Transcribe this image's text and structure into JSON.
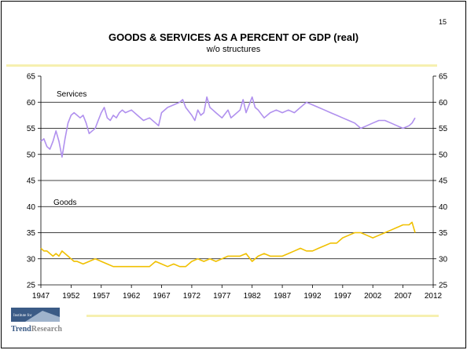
{
  "slide": {
    "page_number": "15",
    "title": "GOODS & SERVICES AS A PERCENT OF GDP (real)",
    "subtitle": "w/o structures",
    "logo": {
      "top_text": "Institute for",
      "brand": "TrendResearch",
      "brand_part1": "Trend",
      "brand_part2": "Research"
    }
  },
  "colors": {
    "services": "#b090ee",
    "goods": "#f0c000",
    "rule": "#f6f0b0",
    "logo_blue": "#3b5b86"
  },
  "chart_data": {
    "type": "line",
    "title": "GOODS & SERVICES AS A PERCENT OF GDP (real)",
    "subtitle": "w/o structures",
    "xlim": [
      1947,
      2012
    ],
    "ylim": [
      25,
      65
    ],
    "xticks": [
      1947,
      1952,
      1957,
      1962,
      1967,
      1972,
      1977,
      1982,
      1987,
      1992,
      1997,
      2002,
      2007,
      2012
    ],
    "yticks": [
      25,
      30,
      35,
      40,
      45,
      50,
      55,
      60,
      65
    ],
    "grid": "horizontal",
    "series": [
      {
        "name": "Services",
        "color": "#b090ee",
        "x": [
          1947,
          1947.5,
          1948,
          1948.5,
          1949,
          1949.5,
          1950,
          1950.5,
          1951,
          1951.5,
          1952,
          1952.5,
          1953,
          1953.5,
          1954,
          1954.5,
          1955,
          1955.5,
          1956,
          1956.5,
          1957,
          1957.5,
          1958,
          1958.5,
          1959,
          1959.5,
          1960,
          1960.5,
          1961,
          1962,
          1963,
          1964,
          1965,
          1966,
          1966.5,
          1967,
          1968,
          1969,
          1970,
          1970.5,
          1971,
          1972,
          1972.5,
          1973,
          1973.5,
          1974,
          1974.5,
          1975,
          1975.5,
          1976,
          1977,
          1978,
          1978.5,
          1979,
          1980,
          1980.5,
          1981,
          1982,
          1982.5,
          1983,
          1984,
          1985,
          1986,
          1987,
          1988,
          1989,
          1990,
          1991,
          1992,
          1993,
          1994,
          1995,
          1996,
          1997,
          1998,
          1999,
          2000,
          2001,
          2002,
          2003,
          2004,
          2005,
          2006,
          2007,
          2008,
          2008.5,
          2009
        ],
        "values": [
          52.5,
          53.0,
          51.5,
          51.0,
          52.5,
          54.5,
          52.5,
          49.5,
          53.0,
          56.0,
          57.5,
          58.0,
          57.5,
          57.0,
          57.5,
          56.0,
          54.0,
          54.5,
          55.0,
          56.5,
          58.0,
          59.0,
          57.0,
          56.5,
          57.5,
          57.0,
          58.0,
          58.5,
          58.0,
          58.5,
          57.5,
          56.5,
          57.0,
          56.0,
          55.5,
          58.0,
          59.0,
          59.5,
          60.0,
          60.5,
          59.0,
          57.5,
          56.5,
          58.5,
          57.5,
          58.0,
          61.0,
          59.0,
          58.5,
          58.0,
          57.0,
          58.5,
          57.0,
          57.5,
          58.5,
          60.5,
          58.0,
          61.0,
          59.0,
          58.5,
          57.0,
          58.0,
          58.5,
          58.0,
          58.5,
          58.0,
          59.0,
          60.0,
          59.5,
          59.0,
          58.5,
          58.0,
          57.5,
          57.0,
          56.5,
          56.0,
          55.0,
          55.5,
          56.0,
          56.5,
          56.5,
          56.0,
          55.5,
          55.0,
          55.5,
          56.0,
          57.0
        ]
      },
      {
        "name": "Goods",
        "color": "#f0c000",
        "x": [
          1947,
          1947.5,
          1948,
          1948.5,
          1949,
          1949.5,
          1950,
          1950.5,
          1951,
          1951.5,
          1952,
          1952.5,
          1953,
          1954,
          1955,
          1956,
          1957,
          1958,
          1959,
          1960,
          1961,
          1962,
          1963,
          1964,
          1965,
          1966,
          1967,
          1968,
          1969,
          1970,
          1971,
          1972,
          1973,
          1974,
          1975,
          1976,
          1977,
          1978,
          1979,
          1980,
          1981,
          1982,
          1983,
          1984,
          1985,
          1986,
          1987,
          1988,
          1989,
          1990,
          1991,
          1992,
          1993,
          1994,
          1995,
          1996,
          1997,
          1998,
          1999,
          2000,
          2001,
          2002,
          2003,
          2004,
          2005,
          2006,
          2007,
          2007.5,
          2008,
          2008.5,
          2009
        ],
        "values": [
          32.0,
          31.5,
          31.5,
          31.0,
          30.5,
          31.0,
          30.5,
          31.5,
          31.0,
          30.5,
          30.0,
          29.5,
          29.5,
          29.0,
          29.5,
          30.0,
          29.5,
          29.0,
          28.5,
          28.5,
          28.5,
          28.5,
          28.5,
          28.5,
          28.5,
          29.5,
          29.0,
          28.5,
          29.0,
          28.5,
          28.5,
          29.5,
          30.0,
          29.5,
          30.0,
          29.5,
          30.0,
          30.5,
          30.5,
          30.5,
          31.0,
          29.5,
          30.5,
          31.0,
          30.5,
          30.5,
          30.5,
          31.0,
          31.5,
          32.0,
          31.5,
          31.5,
          32.0,
          32.5,
          33.0,
          33.0,
          34.0,
          34.5,
          35.0,
          35.0,
          34.5,
          34.0,
          34.5,
          35.0,
          35.5,
          36.0,
          36.5,
          36.5,
          36.5,
          37.0,
          35.0
        ]
      }
    ]
  }
}
